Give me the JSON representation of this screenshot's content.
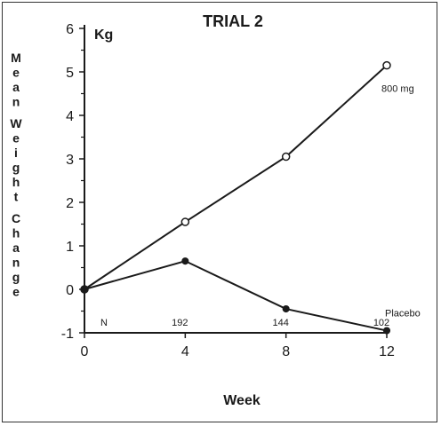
{
  "chart_data": {
    "type": "line",
    "title": "TRIAL 2",
    "xlabel": "Week",
    "ylabel": "Mean Weight Change",
    "yunit": "Kg",
    "xticks": [
      0,
      4,
      8,
      12
    ],
    "yticks": [
      -1,
      0,
      1,
      2,
      3,
      4,
      5,
      6
    ],
    "xlim": [
      0,
      12
    ],
    "ylim": [
      -1,
      6
    ],
    "grid": false,
    "series": [
      {
        "name": "800 mg",
        "marker": "open-circle",
        "x": [
          0,
          4,
          8,
          12
        ],
        "y": [
          0,
          1.55,
          3.05,
          5.15
        ]
      },
      {
        "name": "Placebo",
        "marker": "filled-circle",
        "x": [
          0,
          4,
          8,
          12
        ],
        "y": [
          0,
          0.65,
          -0.45,
          -0.95
        ]
      }
    ],
    "n_label": "N",
    "n_values": [
      "192",
      "144",
      "102"
    ]
  },
  "colors": {
    "ink": "#1a1a1a",
    "background": "#ffffff"
  }
}
